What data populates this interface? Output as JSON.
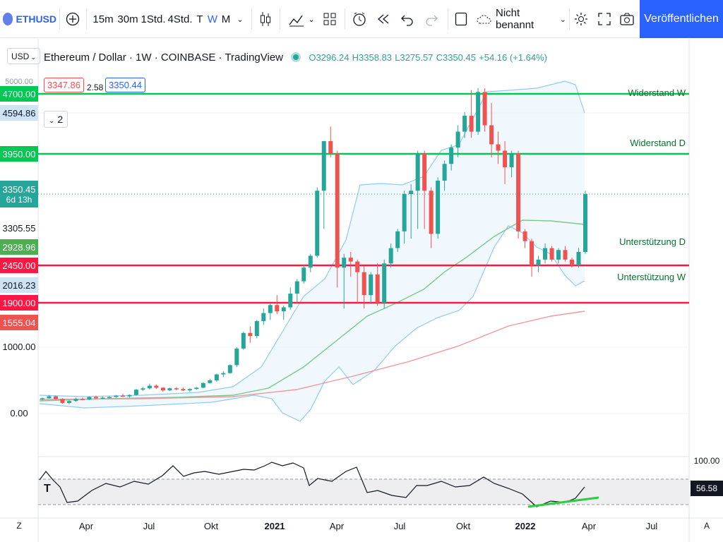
{
  "toolbar": {
    "symbol": "ETHUSD",
    "intervals": [
      "15m",
      "30m",
      "1Std.",
      "4Std.",
      "T",
      "W",
      "M"
    ],
    "active_interval": "W",
    "layout_name": "Nicht benannt",
    "publish_label": "Veröffentlichen"
  },
  "legend": {
    "title": "Ethereum / Dollar · 1W · COINBASE · TradingView",
    "open": "O3296.24",
    "high": "H3358.83",
    "low": "L3275.57",
    "close": "C3350.45",
    "change": "+54.16 (+1.64%)",
    "bid": "3347.86",
    "spread": "2.58",
    "ask": "3350.44",
    "indicators_toggle": "2"
  },
  "currency": "USD",
  "price_axis": {
    "ticks": [
      "5000.00",
      "3305.55",
      "1000.00",
      "0.00"
    ],
    "labels": [
      {
        "text": "4700.00",
        "bg": "#00c853",
        "fg": "#ffffff"
      },
      {
        "text": "4594.86",
        "bg": "#cfe3f7",
        "fg": "#131722"
      },
      {
        "text": "3950.00",
        "bg": "#00c853",
        "fg": "#ffffff"
      },
      {
        "text": "3350.45",
        "sub": "6d 13h",
        "bg": "#26a69a",
        "fg": "#ffffff"
      },
      {
        "text": "2928.96",
        "bg": "#4caf50",
        "fg": "#ffffff"
      },
      {
        "text": "2450.00",
        "bg": "#ff1744",
        "fg": "#ffffff"
      },
      {
        "text": "2016.23",
        "bg": "#cfe3f7",
        "fg": "#131722"
      },
      {
        "text": "1900.00",
        "bg": "#ff1744",
        "fg": "#ffffff"
      },
      {
        "text": "1555.04",
        "bg": "#ef5350",
        "fg": "#ffffff"
      }
    ]
  },
  "horizontal_lines": [
    {
      "label": "Widerstand W",
      "price": 4700,
      "color": "#00c853"
    },
    {
      "label": "Widerstand D",
      "price": 3950,
      "color": "#00c853"
    },
    {
      "label": "Unterstützung D",
      "price": 2450,
      "color": "#ff1744"
    },
    {
      "label": "Unterstützung W",
      "price": 1900,
      "color": "#ff1744"
    }
  ],
  "time_axis": [
    "Apr",
    "Jul",
    "Okt",
    "2021",
    "Apr",
    "Jul",
    "Okt",
    "2022",
    "Apr",
    "Jul"
  ],
  "rsi": {
    "top_label": "100.00",
    "value": "56.58"
  },
  "bottom_left": "Z",
  "bottom_right": "A",
  "colors": {
    "up": "#26a69a",
    "down": "#ef5350",
    "accent": "#2962ff"
  }
}
